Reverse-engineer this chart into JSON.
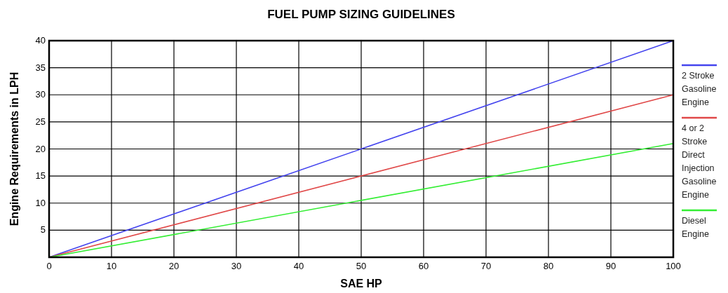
{
  "chart_data": {
    "type": "line",
    "title": "FUEL PUMP SIZING GUIDELINES",
    "xlabel": "SAE HP",
    "ylabel": "Engine Requirements in LPH",
    "x": [
      0,
      100
    ],
    "series": [
      {
        "name": "2 Stroke Gasoline Engine",
        "color": "#4444ee",
        "values": [
          0,
          40
        ]
      },
      {
        "name": "4 or 2 Stroke Direct Injection Gasoline Engine",
        "color": "#e04848",
        "values": [
          0,
          30
        ]
      },
      {
        "name": "Diesel Engine",
        "color": "#33ee33",
        "values": [
          0,
          21
        ]
      }
    ],
    "xlim": [
      0,
      100
    ],
    "xticks": [
      0,
      10,
      20,
      30,
      40,
      50,
      60,
      70,
      80,
      90,
      100
    ],
    "ylim": [
      0,
      40
    ],
    "yticks": [
      5,
      10,
      15,
      20,
      25,
      30,
      35,
      40
    ],
    "grid": true,
    "legend": "right",
    "marker": "none",
    "line_style": "solid"
  }
}
